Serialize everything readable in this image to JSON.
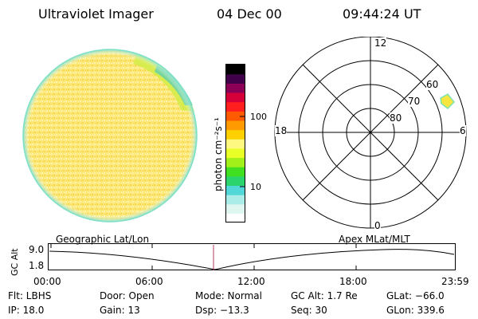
{
  "header": {
    "instrument": "Ultraviolet Imager",
    "date": "04 Dec 00",
    "time": "09:44:24 UT"
  },
  "colorbar": {
    "unit_label": "photon cm⁻²s⁻¹",
    "ticks": [
      "100",
      "10"
    ],
    "colors": [
      "#ffffff",
      "#dff6f0",
      "#a9ece8",
      "#51d7d7",
      "#2bd46d",
      "#40e020",
      "#a2f01a",
      "#e8ff28",
      "#fff880",
      "#ffd000",
      "#ff9b00",
      "#ff5a00",
      "#ff1f1f",
      "#d5003a",
      "#8b0056",
      "#41004a",
      "#000000"
    ]
  },
  "polar_grid": {
    "mlt_labels": [
      "12",
      "18",
      "6",
      "0"
    ],
    "lat_labels": [
      "60",
      "70",
      "80"
    ],
    "spot_color": "#f7e640"
  },
  "orbit_plot": {
    "left_caption": "Geographic Lat/Lon",
    "right_caption": "Apex MLat/MLT",
    "ylabel": "GC Alt",
    "ymax": "9.0",
    "ymin": "1.8",
    "xticks": [
      "00:00",
      "06:00",
      "12:00",
      "18:00",
      "23:59"
    ]
  },
  "footer": {
    "row1": [
      "Flt: LBHS",
      "Door: Open",
      "Mode: Normal",
      "GC Alt: 1.7 Re",
      "GLat: −66.0"
    ],
    "row2": [
      "IP: 18.0",
      "Gain: 13",
      "Dsp:  −13.3",
      "Seq: 30",
      "GLon: 339.6"
    ]
  }
}
